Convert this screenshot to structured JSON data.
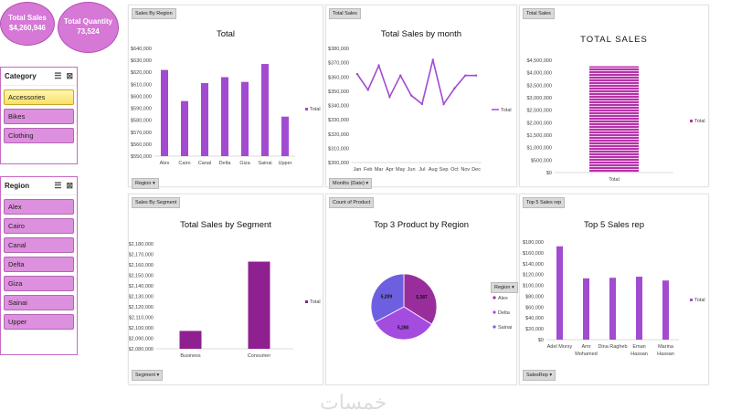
{
  "kpis": {
    "sales_label": "Total Sales",
    "sales_value": "$4,260,946",
    "qty_label": "Total Quantity",
    "qty_value": "73,524"
  },
  "category_slicer": {
    "title": "Category",
    "items": [
      "Accessories",
      "Bikes",
      "Clothing"
    ],
    "selected": "Accessories"
  },
  "region_slicer": {
    "title": "Region",
    "items": [
      "Alex",
      "Cairo",
      "Canal",
      "Delta",
      "Giza",
      "Sainai",
      "Upper"
    ]
  },
  "panels": {
    "region": {
      "tag": "Sales By Region",
      "title": "Total",
      "filter": "Region"
    },
    "month": {
      "tag": "Total Sales",
      "title": "Total Sales by month",
      "filter": "Months (Date)"
    },
    "total": {
      "tag": "Total Sales",
      "title": "TOTAL SALES"
    },
    "segment": {
      "tag": "Sales By Segment",
      "title": "Total Sales by Segment",
      "filter": "Segment"
    },
    "product": {
      "tag": "Count of Product",
      "title": "Top 3 Product by Region",
      "legend_title": "Region"
    },
    "rep": {
      "tag": "Top 5 Sales rep",
      "title": "Top 5 Sales rep",
      "filter": "SalesRep"
    }
  },
  "chart_data": [
    {
      "type": "bar",
      "title": "Total",
      "categories": [
        "Alex",
        "Cairo",
        "Canal",
        "Delta",
        "Giza",
        "Sainai",
        "Upper"
      ],
      "series": [
        {
          "name": "Total",
          "values": [
            622000,
            596000,
            611000,
            616000,
            612000,
            627000,
            583000
          ]
        }
      ],
      "ylim": [
        550000,
        640000
      ],
      "yticks": [
        "$550,000",
        "$560,000",
        "$570,000",
        "$580,000",
        "$590,000",
        "$600,000",
        "$610,000",
        "$620,000",
        "$630,000",
        "$640,000"
      ],
      "color": "#a24bd1"
    },
    {
      "type": "line",
      "title": "Total Sales by month",
      "categories": [
        "Jan",
        "Feb",
        "Mar",
        "Apr",
        "May",
        "Jun",
        "Jul",
        "Aug",
        "Sep",
        "Oct",
        "Nov",
        "Dec"
      ],
      "series": [
        {
          "name": "Total",
          "values": [
            362000,
            351000,
            368000,
            346000,
            361000,
            347000,
            341000,
            372000,
            341000,
            352000,
            361000,
            361000
          ]
        }
      ],
      "ylim": [
        300000,
        380000
      ],
      "yticks": [
        "$300,000",
        "$310,000",
        "$320,000",
        "$330,000",
        "$340,000",
        "$350,000",
        "$360,000",
        "$370,000",
        "$380,000"
      ],
      "color": "#a24bd1"
    },
    {
      "type": "bar",
      "title": "TOTAL SALES",
      "categories": [
        "Total"
      ],
      "series": [
        {
          "name": "Total",
          "values": [
            4260946
          ]
        }
      ],
      "ylim": [
        0,
        4500000
      ],
      "yticks": [
        "$0",
        "$500,000",
        "$1,000,000",
        "$1,500,000",
        "$2,000,000",
        "$2,500,000",
        "$3,000,000",
        "$3,500,000",
        "$4,000,000",
        "$4,500,000"
      ],
      "color": "#b534a8"
    },
    {
      "type": "bar",
      "title": "Total Sales by Segment",
      "categories": [
        "Business",
        "Consumer"
      ],
      "series": [
        {
          "name": "Total",
          "values": [
            2097000,
            2163000
          ]
        }
      ],
      "ylim": [
        2080000,
        2180000
      ],
      "yticks": [
        "$2,080,000",
        "$2,090,000",
        "$2,100,000",
        "$2,110,000",
        "$2,120,000",
        "$2,130,000",
        "$2,140,000",
        "$2,150,000",
        "$2,160,000",
        "$2,170,000",
        "$2,180,000"
      ],
      "color": "#8e2090"
    },
    {
      "type": "pie",
      "title": "Top 3 Product by Region",
      "categories": [
        "Alex",
        "Delta",
        "Sainai"
      ],
      "values": [
        5387,
        5280,
        5209
      ],
      "labels": [
        "5,387",
        "5,280",
        "5,209"
      ],
      "colors": [
        "#9a2d9c",
        "#a44be0",
        "#6e5fe0"
      ]
    },
    {
      "type": "bar",
      "title": "Top 5 Sales rep",
      "categories": [
        "Adel Morsy",
        "Amr Mohamed",
        "Dina Ragheb",
        "Eman Hassan",
        "Marina Hassan"
      ],
      "category_lines": [
        [
          "Adel Morsy"
        ],
        [
          "Amr",
          "Mohamed"
        ],
        [
          "Dina Ragheb"
        ],
        [
          "Eman",
          "Hassan"
        ],
        [
          "Marina",
          "Hassan"
        ]
      ],
      "series": [
        {
          "name": "Total",
          "values": [
            172000,
            113000,
            114000,
            116000,
            109000
          ]
        }
      ],
      "ylim": [
        0,
        180000
      ],
      "yticks": [
        "$0",
        "$20,000",
        "$40,000",
        "$60,000",
        "$80,000",
        "$100,000",
        "$120,000",
        "$140,000",
        "$160,000",
        "$180,000"
      ],
      "color": "#a24bd1"
    }
  ],
  "watermark": "خمسات"
}
